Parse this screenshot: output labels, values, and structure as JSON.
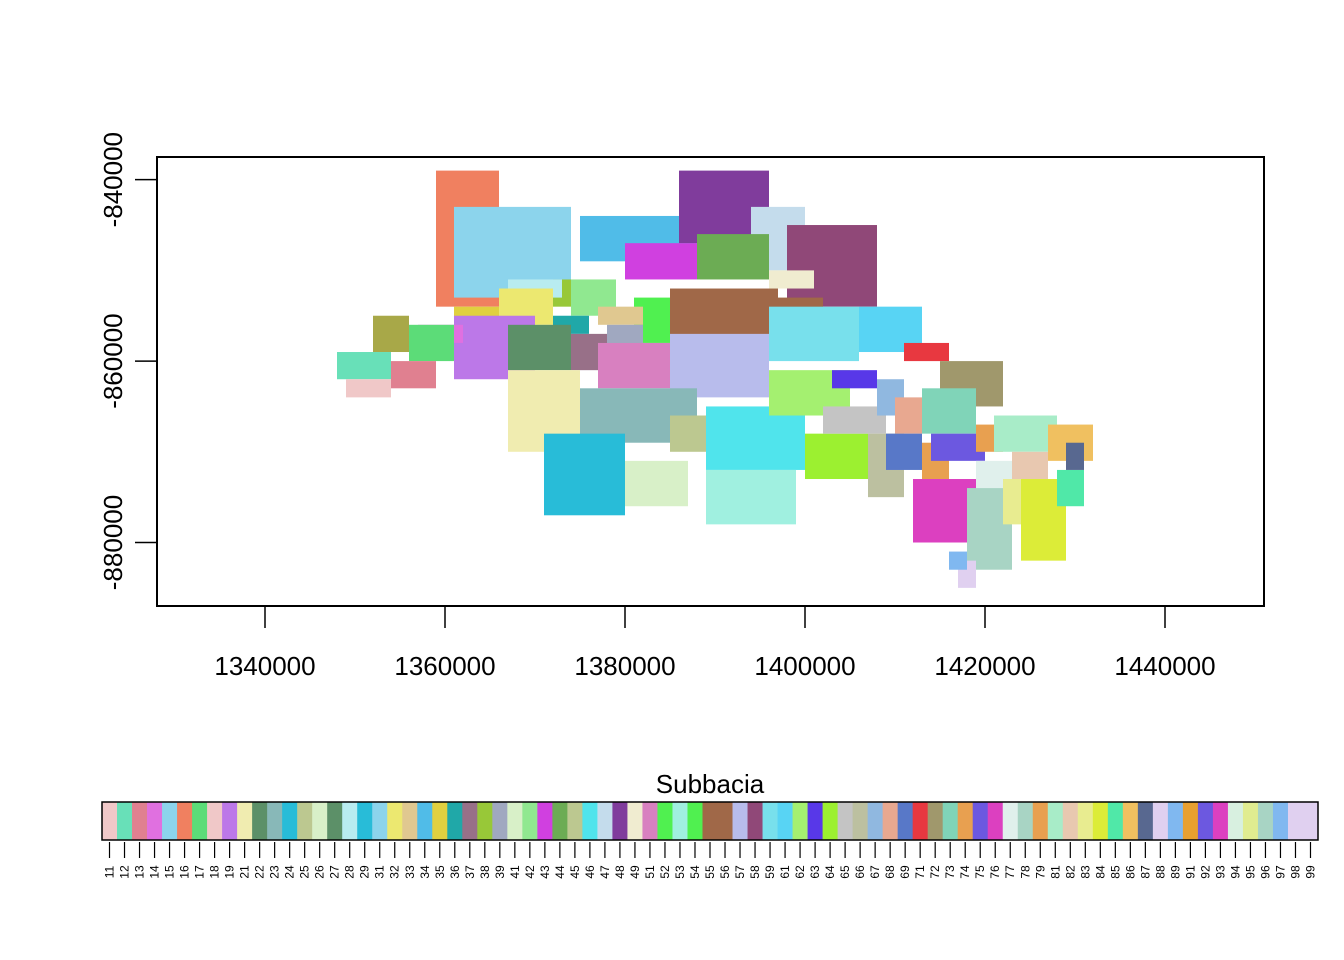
{
  "chart_data": {
    "type": "heatmap",
    "title": "",
    "xlabel": "",
    "ylabel": "",
    "xlim": [
      1328000,
      1451000
    ],
    "ylim": [
      -887000,
      -837500
    ],
    "x_ticks": [
      {
        "value": 1340000,
        "label": "1340000"
      },
      {
        "value": 1360000,
        "label": "1360000"
      },
      {
        "value": 1380000,
        "label": "1380000"
      },
      {
        "value": 1400000,
        "label": "1400000"
      },
      {
        "value": 1420000,
        "label": "1420000"
      },
      {
        "value": 1440000,
        "label": "1440000"
      }
    ],
    "y_ticks": [
      {
        "value": -840000,
        "label": "-840000"
      },
      {
        "value": -860000,
        "label": "-860000"
      },
      {
        "value": -880000,
        "label": "-880000"
      }
    ],
    "regions": [
      {
        "id": 16,
        "color": "#f08060",
        "x": [
          1359000,
          1366000
        ],
        "y": [
          -854000,
          -839000
        ]
      },
      {
        "id": 15,
        "color": "#8cd4ec",
        "x": [
          1361000,
          1374000
        ],
        "y": [
          -853000,
          -843000
        ]
      },
      {
        "id": 34,
        "color": "#50bce8",
        "x": [
          1375000,
          1388000
        ],
        "y": [
          -849000,
          -844000
        ]
      },
      {
        "id": 48,
        "color": "#803c9c",
        "x": [
          1386000,
          1396000
        ],
        "y": [
          -847000,
          -839000
        ]
      },
      {
        "id": 47,
        "color": "#c4dcec",
        "x": [
          1394000,
          1400000
        ],
        "y": [
          -850000,
          -843000
        ]
      },
      {
        "id": 58,
        "color": "#904878",
        "x": [
          1398000,
          1408000
        ],
        "y": [
          -854000,
          -845000
        ]
      },
      {
        "id": 44,
        "color": "#6cac54",
        "x": [
          1388000,
          1396000
        ],
        "y": [
          -851000,
          -846000
        ]
      },
      {
        "id": 43,
        "color": "#d040e0",
        "x": [
          1380000,
          1388000
        ],
        "y": [
          -851000,
          -847000
        ]
      },
      {
        "id": 49,
        "color": "#f0ecd0",
        "x": [
          1396000,
          1401000
        ],
        "y": [
          -852000,
          -850000
        ]
      },
      {
        "id": 38,
        "color": "#98c838",
        "x": [
          1372000,
          1374000
        ],
        "y": [
          -854000,
          -851000
        ]
      },
      {
        "id": 42,
        "color": "#90e890",
        "x": [
          1374000,
          1379000
        ],
        "y": [
          -855000,
          -851000
        ]
      },
      {
        "id": 28,
        "color": "#b8ecf0",
        "x": [
          1367000,
          1373000
        ],
        "y": [
          -853000,
          -851000
        ]
      },
      {
        "id": 32,
        "color": "#ece870",
        "x": [
          1366000,
          1372000
        ],
        "y": [
          -856000,
          -852000
        ]
      },
      {
        "id": 31,
        "color": "#e0d040",
        "x": [
          1361000,
          1366000
        ],
        "y": [
          -857000,
          -854000
        ]
      },
      {
        "id": 54,
        "color": "#50f050",
        "x": [
          1381000,
          1385000
        ],
        "y": [
          -858000,
          -853000
        ]
      },
      {
        "id": 33,
        "color": "#e0c890",
        "x": [
          1377000,
          1382000
        ],
        "y": [
          -856000,
          -854000
        ]
      },
      {
        "id": 56,
        "color": "#a06848",
        "x": [
          1385000,
          1397000
        ],
        "y": [
          -858000,
          -852000
        ]
      },
      {
        "id": 55,
        "color": "#a06848",
        "x": [
          1397000,
          1402000
        ],
        "y": [
          -856000,
          -853000
        ]
      },
      {
        "id": 36,
        "color": "#20a8a8",
        "x": [
          1372000,
          1376000
        ],
        "y": [
          -857000,
          -855000
        ]
      },
      {
        "id": 19,
        "color": "#bc78e8",
        "x": [
          1361000,
          1370000
        ],
        "y": [
          -862000,
          -855000
        ]
      },
      {
        "id": 14,
        "color": "#e070e0",
        "x": [
          1357000,
          1362000
        ],
        "y": [
          -858000,
          -856000
        ]
      },
      {
        "id": 12,
        "color": "#a8a848",
        "x": [
          1352000,
          1356000
        ],
        "y": [
          -859000,
          -855000
        ]
      },
      {
        "id": 13,
        "color": "#5cdc78",
        "x": [
          1356000,
          1361000
        ],
        "y": [
          -860000,
          -856000
        ]
      },
      {
        "id": 26,
        "color": "#5c9068",
        "x": [
          1367000,
          1374000
        ],
        "y": [
          -861000,
          -856000
        ]
      },
      {
        "id": 37,
        "color": "#987088",
        "x": [
          1374000,
          1378000
        ],
        "y": [
          -861000,
          -857000
        ]
      },
      {
        "id": 39,
        "color": "#a0a8c0",
        "x": [
          1378000,
          1382000
        ],
        "y": [
          -859000,
          -856000
        ]
      },
      {
        "id": 51,
        "color": "#d880c0",
        "x": [
          1377000,
          1385000
        ],
        "y": [
          -863000,
          -858000
        ]
      },
      {
        "id": 57,
        "color": "#b8bcec",
        "x": [
          1385000,
          1396000
        ],
        "y": [
          -864000,
          -857000
        ]
      },
      {
        "id": 59,
        "color": "#78e0ec",
        "x": [
          1396000,
          1406000
        ],
        "y": [
          -860000,
          -854000
        ]
      },
      {
        "id": 61,
        "color": "#58d4f4",
        "x": [
          1406000,
          1413000
        ],
        "y": [
          -859000,
          -854000
        ]
      },
      {
        "id": 11,
        "color": "#68e0b8",
        "x": [
          1348000,
          1354000
        ],
        "y": [
          -862000,
          -859000
        ]
      },
      {
        "id": 17,
        "color": "#e08090",
        "x": [
          1354000,
          1359000
        ],
        "y": [
          -863000,
          -860000
        ]
      },
      {
        "id": 18,
        "color": "#f0c8c8",
        "x": [
          1349000,
          1354000
        ],
        "y": [
          -864000,
          -862000
        ]
      },
      {
        "id": 21,
        "color": "#f0ecb0",
        "x": [
          1367000,
          1375000
        ],
        "y": [
          -870000,
          -861000
        ]
      },
      {
        "id": 23,
        "color": "#88b8b8",
        "x": [
          1375000,
          1388000
        ],
        "y": [
          -869000,
          -863000
        ]
      },
      {
        "id": 29,
        "color": "#28bcd8",
        "x": [
          1371000,
          1380000
        ],
        "y": [
          -877000,
          -868000
        ]
      },
      {
        "id": 41,
        "color": "#d8f0c8",
        "x": [
          1380000,
          1387000
        ],
        "y": [
          -876000,
          -871000
        ]
      },
      {
        "id": 45,
        "color": "#bcc890",
        "x": [
          1385000,
          1389000
        ],
        "y": [
          -870000,
          -866000
        ]
      },
      {
        "id": 46,
        "color": "#50e4ec",
        "x": [
          1389000,
          1400000
        ],
        "y": [
          -872000,
          -865000
        ]
      },
      {
        "id": 52,
        "color": "#a0f0e0",
        "x": [
          1389000,
          1399000
        ],
        "y": [
          -878000,
          -872000
        ]
      },
      {
        "id": 62,
        "color": "#a4f070",
        "x": [
          1396000,
          1405000
        ],
        "y": [
          -866000,
          -861000
        ]
      },
      {
        "id": 63,
        "color": "#5838e8",
        "x": [
          1403000,
          1408000
        ],
        "y": [
          -863000,
          -861000
        ]
      },
      {
        "id": 64,
        "color": "#9cf030",
        "x": [
          1400000,
          1407000
        ],
        "y": [
          -873000,
          -868000
        ]
      },
      {
        "id": 65,
        "color": "#c4c4c4",
        "x": [
          1402000,
          1409000
        ],
        "y": [
          -868000,
          -865000
        ]
      },
      {
        "id": 66,
        "color": "#bcc0a0",
        "x": [
          1407000,
          1411000
        ],
        "y": [
          -875000,
          -868000
        ]
      },
      {
        "id": 67,
        "color": "#90b8e0",
        "x": [
          1408000,
          1411000
        ],
        "y": [
          -866000,
          -862000
        ]
      },
      {
        "id": 68,
        "color": "#e8a890",
        "x": [
          1410000,
          1413000
        ],
        "y": [
          -868000,
          -864000
        ]
      },
      {
        "id": 69,
        "color": "#5878c8",
        "x": [
          1409000,
          1413000
        ],
        "y": [
          -872000,
          -868000
        ]
      },
      {
        "id": 71,
        "color": "#e83840",
        "x": [
          1411000,
          1416000
        ],
        "y": [
          -860000,
          -858000
        ]
      },
      {
        "id": 72,
        "color": "#a0986c",
        "x": [
          1415000,
          1422000
        ],
        "y": [
          -865000,
          -860000
        ]
      },
      {
        "id": 73,
        "color": "#80d4b8",
        "x": [
          1413000,
          1419000
        ],
        "y": [
          -868000,
          -863000
        ]
      },
      {
        "id": 74,
        "color": "#e8a050",
        "x": [
          1413000,
          1416000
        ],
        "y": [
          -873000,
          -869000
        ]
      },
      {
        "id": 75,
        "color": "#6c58e0",
        "x": [
          1414000,
          1420000
        ],
        "y": [
          -871000,
          -868000
        ]
      },
      {
        "id": 76,
        "color": "#dc40c0",
        "x": [
          1412000,
          1419000
        ],
        "y": [
          -880000,
          -873000
        ]
      },
      {
        "id": 77,
        "color": "#e0f0ec",
        "x": [
          1419000,
          1424000
        ],
        "y": [
          -874000,
          -871000
        ]
      },
      {
        "id": 78,
        "color": "#a8d4c4",
        "x": [
          1418000,
          1423000
        ],
        "y": [
          -883000,
          -874000
        ]
      },
      {
        "id": 79,
        "color": "#e8a050",
        "x": [
          1419000,
          1422000
        ],
        "y": [
          -870000,
          -867000
        ]
      },
      {
        "id": 81,
        "color": "#a8ecc8",
        "x": [
          1421000,
          1428000
        ],
        "y": [
          -870000,
          -866000
        ]
      },
      {
        "id": 82,
        "color": "#e8c8b0",
        "x": [
          1423000,
          1427000
        ],
        "y": [
          -873000,
          -870000
        ]
      },
      {
        "id": 83,
        "color": "#e8ec90",
        "x": [
          1422000,
          1425000
        ],
        "y": [
          -878000,
          -873000
        ]
      },
      {
        "id": 84,
        "color": "#dcec38",
        "x": [
          1424000,
          1429000
        ],
        "y": [
          -882000,
          -873000
        ]
      },
      {
        "id": 85,
        "color": "#50e8a8",
        "x": [
          1428000,
          1431000
        ],
        "y": [
          -876000,
          -872000
        ]
      },
      {
        "id": 86,
        "color": "#f0c060",
        "x": [
          1427000,
          1432000
        ],
        "y": [
          -871000,
          -867000
        ]
      },
      {
        "id": 87,
        "color": "#586890",
        "x": [
          1429000,
          1431000
        ],
        "y": [
          -872000,
          -869000
        ]
      },
      {
        "id": 88,
        "color": "#e0d0f0",
        "x": [
          1417000,
          1419000
        ],
        "y": [
          -885000,
          -882000
        ]
      },
      {
        "id": 89,
        "color": "#80b8f0",
        "x": [
          1416000,
          1418000
        ],
        "y": [
          -883000,
          -881000
        ]
      }
    ],
    "legend": {
      "title": "Subbacia",
      "placement": "bottom",
      "classes": [
        11,
        12,
        13,
        14,
        15,
        16,
        17,
        18,
        19,
        21,
        22,
        23,
        24,
        25,
        26,
        27,
        28,
        29,
        31,
        32,
        33,
        34,
        35,
        36,
        37,
        38,
        39,
        41,
        42,
        43,
        44,
        45,
        46,
        47,
        48,
        49,
        51,
        52,
        53,
        54,
        55,
        56,
        57,
        58,
        59,
        61,
        62,
        63,
        64,
        65,
        66,
        67,
        68,
        69,
        71,
        72,
        73,
        74,
        75,
        76,
        77,
        78,
        79,
        81,
        82,
        83,
        84,
        85,
        86,
        87,
        88,
        89,
        91,
        92,
        93,
        94,
        95,
        96,
        97,
        98,
        99
      ],
      "colors": [
        "#f0c8c8",
        "#68e0b8",
        "#e08090",
        "#e070e0",
        "#8cd4ec",
        "#f08060",
        "#5cdc78",
        "#f0c8c8",
        "#bc78e8",
        "#f0ecb0",
        "#5c9068",
        "#88b8b8",
        "#28bcd8",
        "#bcc890",
        "#d8f0c8",
        "#5c9068",
        "#b8ecf0",
        "#28bcd8",
        "#8cd4ec",
        "#ece870",
        "#e0c890",
        "#50bce8",
        "#e0d040",
        "#20a8a8",
        "#987088",
        "#98c838",
        "#a0a8c0",
        "#d8f0c8",
        "#90e890",
        "#d040e0",
        "#6cac54",
        "#bcc890",
        "#50e4ec",
        "#c4dcec",
        "#803c9c",
        "#f0ecd0",
        "#d880c0",
        "#50f050",
        "#a0f0e0",
        "#50f050",
        "#a06848",
        "#a06848",
        "#b8bcec",
        "#904878",
        "#78e0ec",
        "#58d4f4",
        "#a4f070",
        "#5838e8",
        "#9cf030",
        "#c4c4c4",
        "#bcc0a0",
        "#90b8e0",
        "#e8a890",
        "#5878c8",
        "#e83840",
        "#a0986c",
        "#80d4b8",
        "#e8a050",
        "#6c58e0",
        "#dc40c0",
        "#e0f0ec",
        "#a8d4c4",
        "#e8a050",
        "#a8ecc8",
        "#e8c8b0",
        "#e8ec90",
        "#dcec38",
        "#50e8a8",
        "#f0c060",
        "#586890",
        "#e0d0f0",
        "#80b8f0",
        "#e8a030",
        "#6c58e0",
        "#dc40c0",
        "#d8f0e0",
        "#e0ec90",
        "#a8d4c4",
        "#80b8f0",
        "#e0d0f0",
        "#e0d0f0"
      ]
    }
  }
}
